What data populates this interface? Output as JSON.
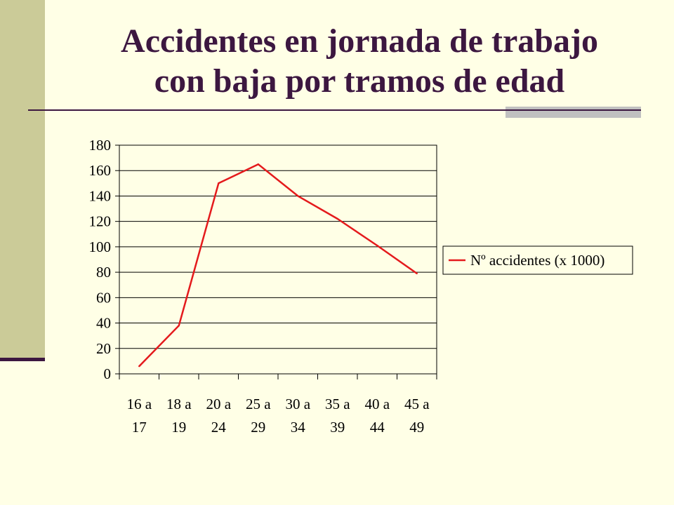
{
  "slide": {
    "title_line1": "Accidentes en jornada de trabajo",
    "title_line2": "con baja por tramos de edad"
  },
  "colors": {
    "background": "#FFFFE6",
    "sidebar": "#CBCB98",
    "title": "#3C1740",
    "accent": "#C0C0C0",
    "series": "#E41A1C"
  },
  "chart_data": {
    "type": "line",
    "categories": [
      "16 a 17",
      "18 a 19",
      "20 a 24",
      "25 a 29",
      "30 a 34",
      "35 a 39",
      "40 a 44",
      "45 a 49"
    ],
    "category_lines": [
      [
        "16 a",
        "17"
      ],
      [
        "18 a",
        "19"
      ],
      [
        "20 a",
        "24"
      ],
      [
        "25 a",
        "29"
      ],
      [
        "30 a",
        "34"
      ],
      [
        "35 a",
        "39"
      ],
      [
        "40 a",
        "44"
      ],
      [
        "45 a",
        "49"
      ]
    ],
    "series": [
      {
        "name": "Nº accidentes (x 1000)",
        "values": [
          6,
          38,
          150,
          165,
          140,
          122,
          101,
          79
        ]
      }
    ],
    "yticks": [
      0,
      20,
      40,
      60,
      80,
      100,
      120,
      140,
      160,
      180
    ],
    "ylim": [
      0,
      180
    ],
    "grid": true,
    "legend": "right"
  }
}
